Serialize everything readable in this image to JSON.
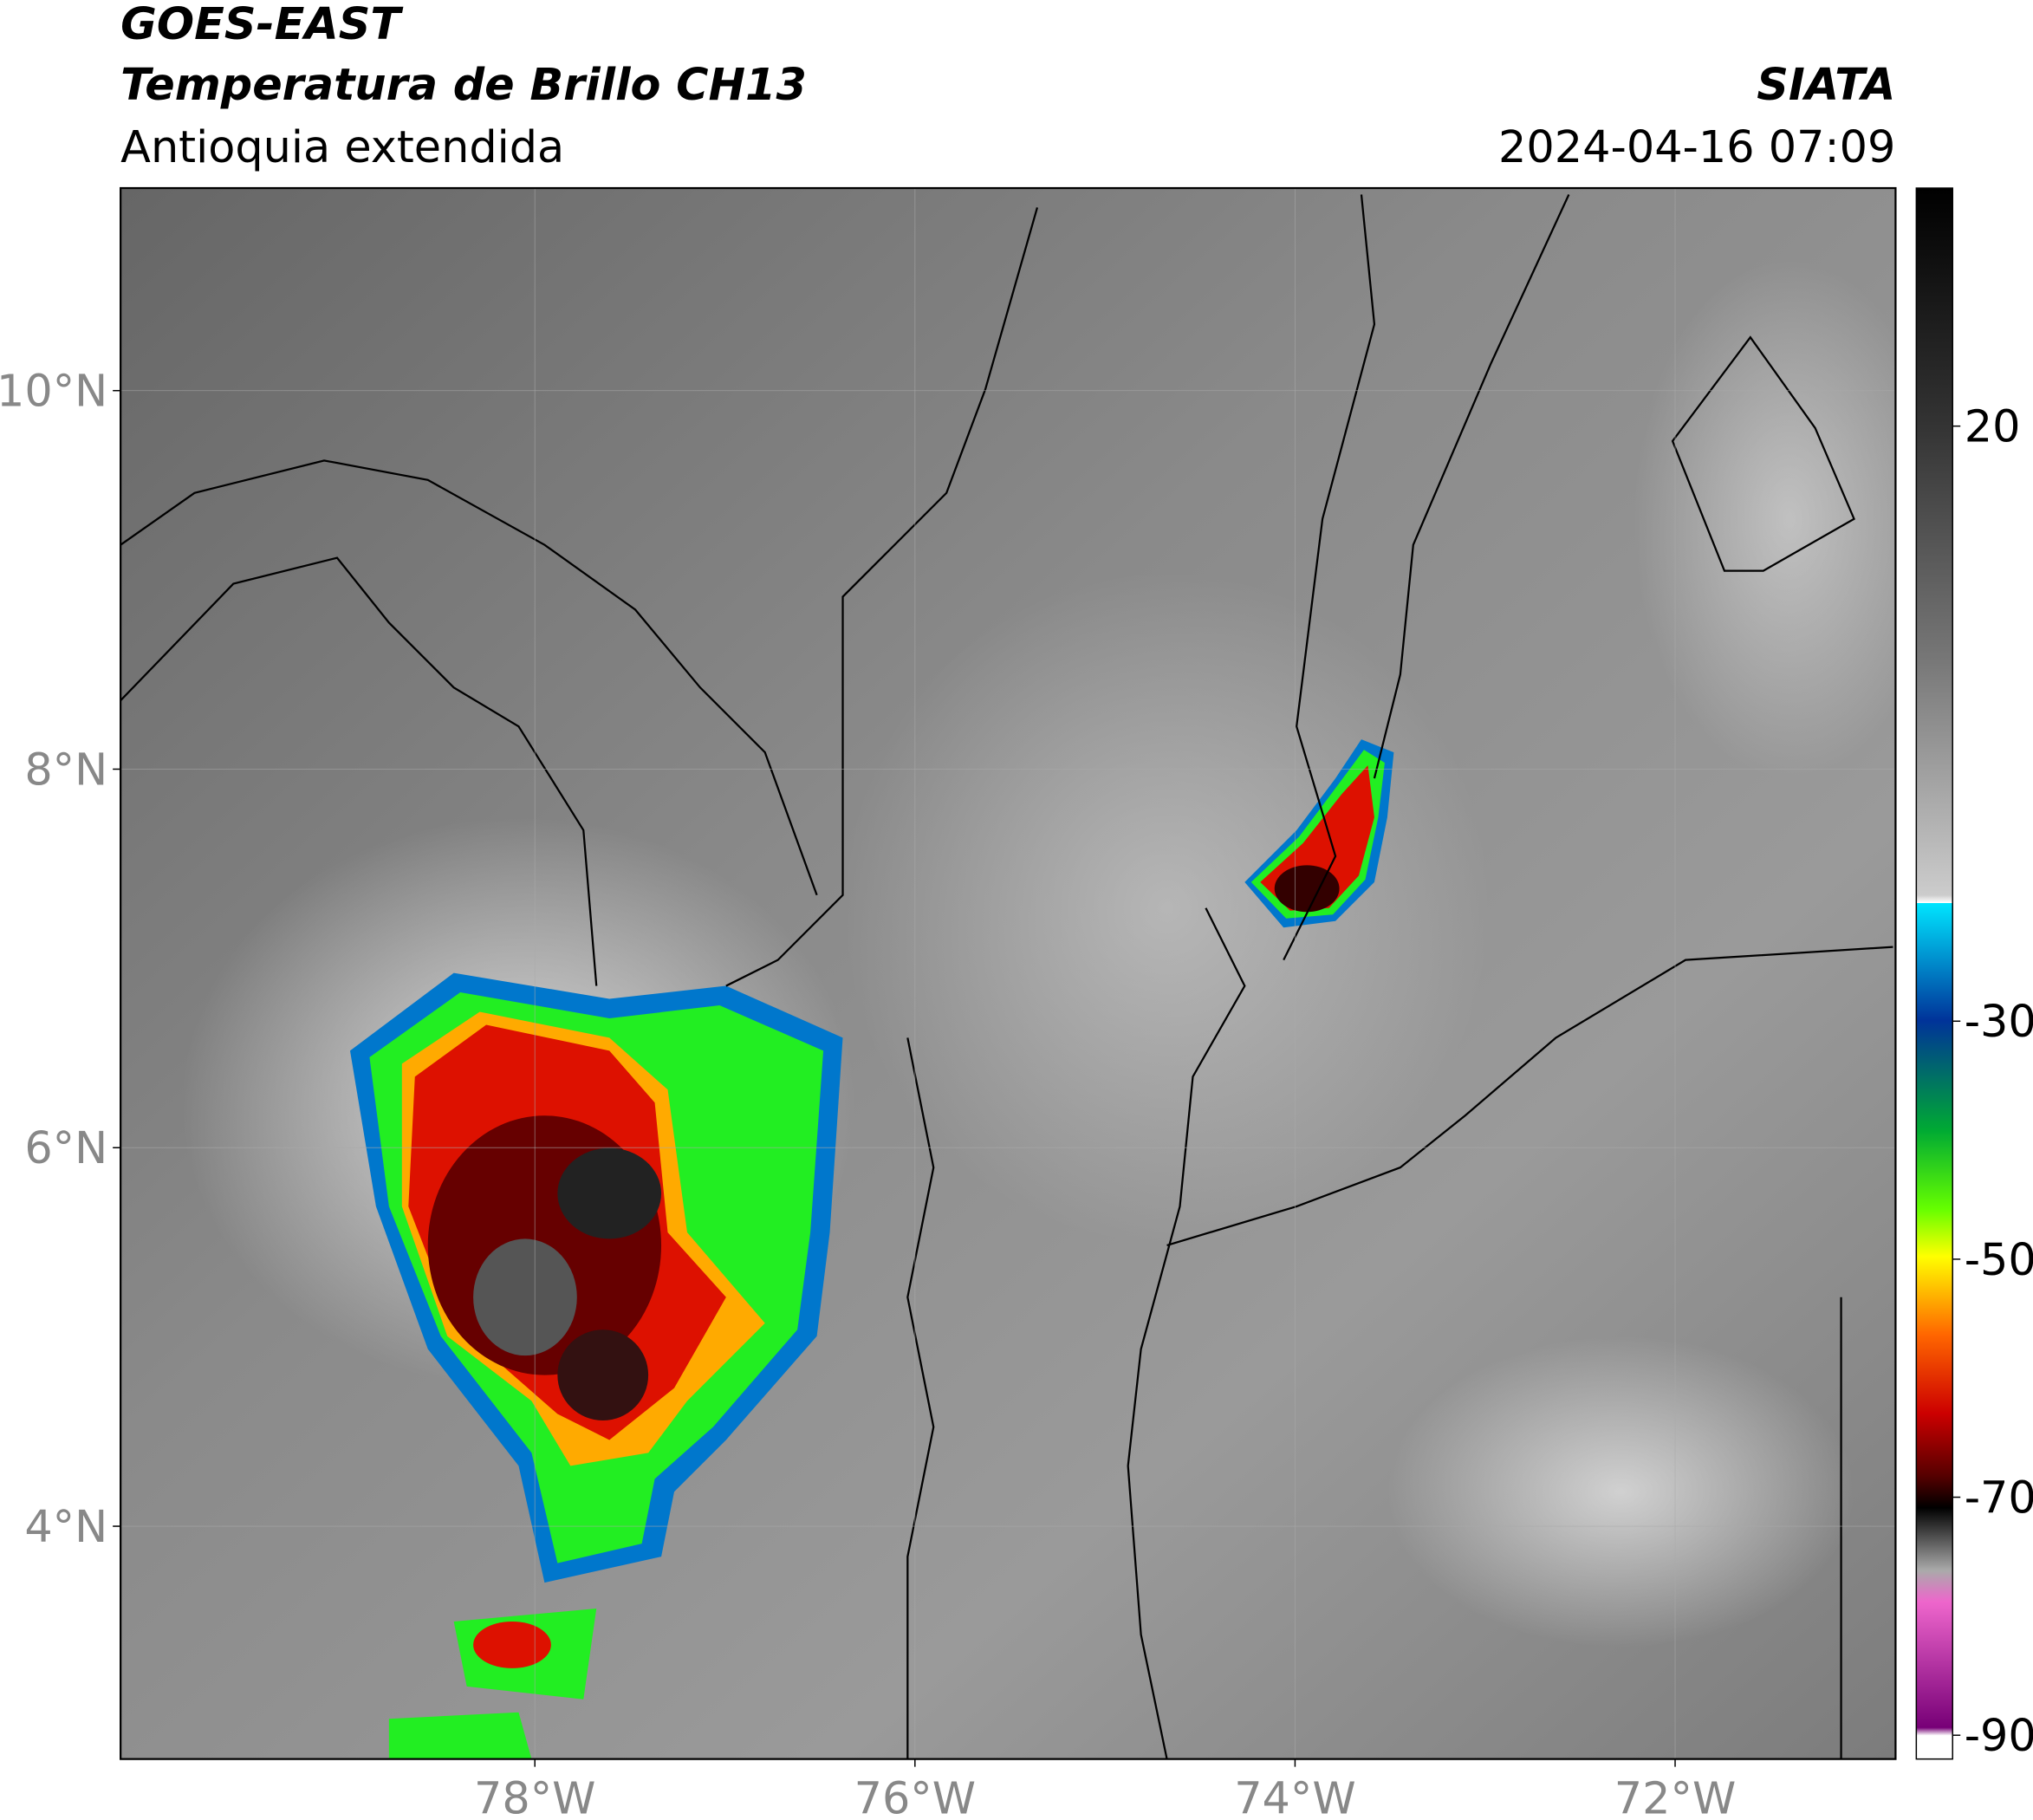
{
  "header": {
    "title": "GOES-EAST",
    "subtitle": "Temperatura de Brillo CH13",
    "region": "Antioquia extendida",
    "source": "SIATA",
    "datetime": "2024-04-16 07:09"
  },
  "map": {
    "xlim": [
      -80.18,
      -70.84
    ],
    "ylim": [
      2.77,
      11.07
    ],
    "xticks": [
      {
        "value": -78,
        "label": "78°W"
      },
      {
        "value": -76,
        "label": "76°W"
      },
      {
        "value": -74,
        "label": "74°W"
      },
      {
        "value": -72,
        "label": "72°W"
      }
    ],
    "yticks": [
      {
        "value": 4,
        "label": "4°N"
      },
      {
        "value": 6,
        "label": "6°N"
      },
      {
        "value": 8,
        "label": "8°N"
      },
      {
        "value": 10,
        "label": "10°N"
      }
    ]
  },
  "colorbar": {
    "range": [
      -92,
      40
    ],
    "ticks": [
      20,
      -30,
      -50,
      -70,
      -90
    ]
  }
}
